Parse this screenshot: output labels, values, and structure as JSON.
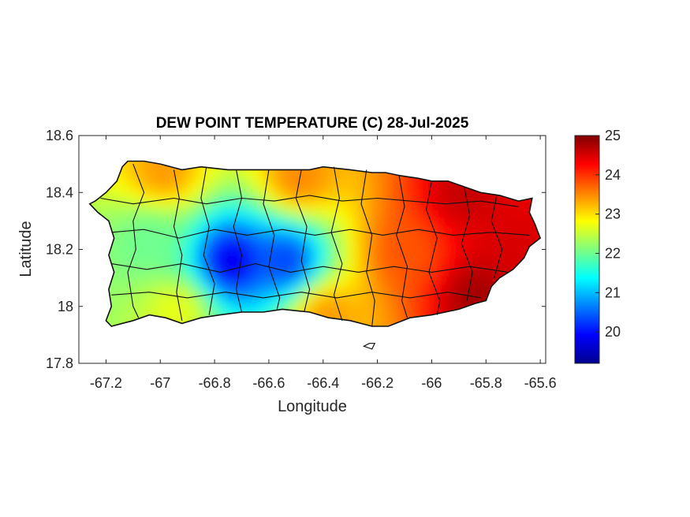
{
  "chart_data": {
    "type": "heatmap",
    "title": "DEW POINT TEMPERATURE (C) 28-Jul-2025",
    "xlabel": "Longitude",
    "ylabel": "Latitude",
    "xlim": [
      -67.3,
      -65.58
    ],
    "ylim": [
      17.8,
      18.6
    ],
    "x_ticks": [
      -67.2,
      -67,
      -66.8,
      -66.6,
      -66.4,
      -66.2,
      -66,
      -65.8,
      -65.6
    ],
    "x_tick_labels": [
      "-67.2",
      "-67",
      "-66.8",
      "-66.6",
      "-66.4",
      "-66.2",
      "-66",
      "-65.8",
      "-65.6"
    ],
    "y_ticks": [
      18.6,
      18.4,
      18.2,
      18,
      17.8
    ],
    "y_tick_labels": [
      "18.6",
      "18.4",
      "18.2",
      "18",
      "17.8"
    ],
    "colorbar": {
      "colormap": "jet",
      "range": [
        19.2,
        25
      ],
      "ticks": [
        25,
        24,
        23,
        22,
        21,
        20
      ],
      "tick_labels": [
        "25",
        "24",
        "23",
        "22",
        "21",
        "20"
      ]
    },
    "field_summary": [
      {
        "region": "northeast coast",
        "lon": -65.9,
        "lat": 18.4,
        "value": 24.6
      },
      {
        "region": "eastern coast",
        "lon": -65.7,
        "lat": 18.2,
        "value": 24.5
      },
      {
        "region": "southeast",
        "lon": -65.85,
        "lat": 18.05,
        "value": 24.8
      },
      {
        "region": "east-central",
        "lon": -66.1,
        "lat": 18.2,
        "value": 23.8
      },
      {
        "region": "south-central coast",
        "lon": -66.4,
        "lat": 17.98,
        "value": 23.4
      },
      {
        "region": "north-central coast",
        "lon": -66.5,
        "lat": 18.46,
        "value": 23.5
      },
      {
        "region": "northwest coast",
        "lon": -67.0,
        "lat": 18.48,
        "value": 23.4
      },
      {
        "region": "west-central",
        "lon": -67.05,
        "lat": 18.25,
        "value": 22.0
      },
      {
        "region": "central mountains",
        "lon": -66.75,
        "lat": 18.17,
        "value": 19.8
      },
      {
        "region": "central highlands",
        "lon": -66.55,
        "lat": 18.17,
        "value": 20.3
      },
      {
        "region": "southwest",
        "lon": -66.95,
        "lat": 18.0,
        "value": 22.7
      }
    ]
  }
}
